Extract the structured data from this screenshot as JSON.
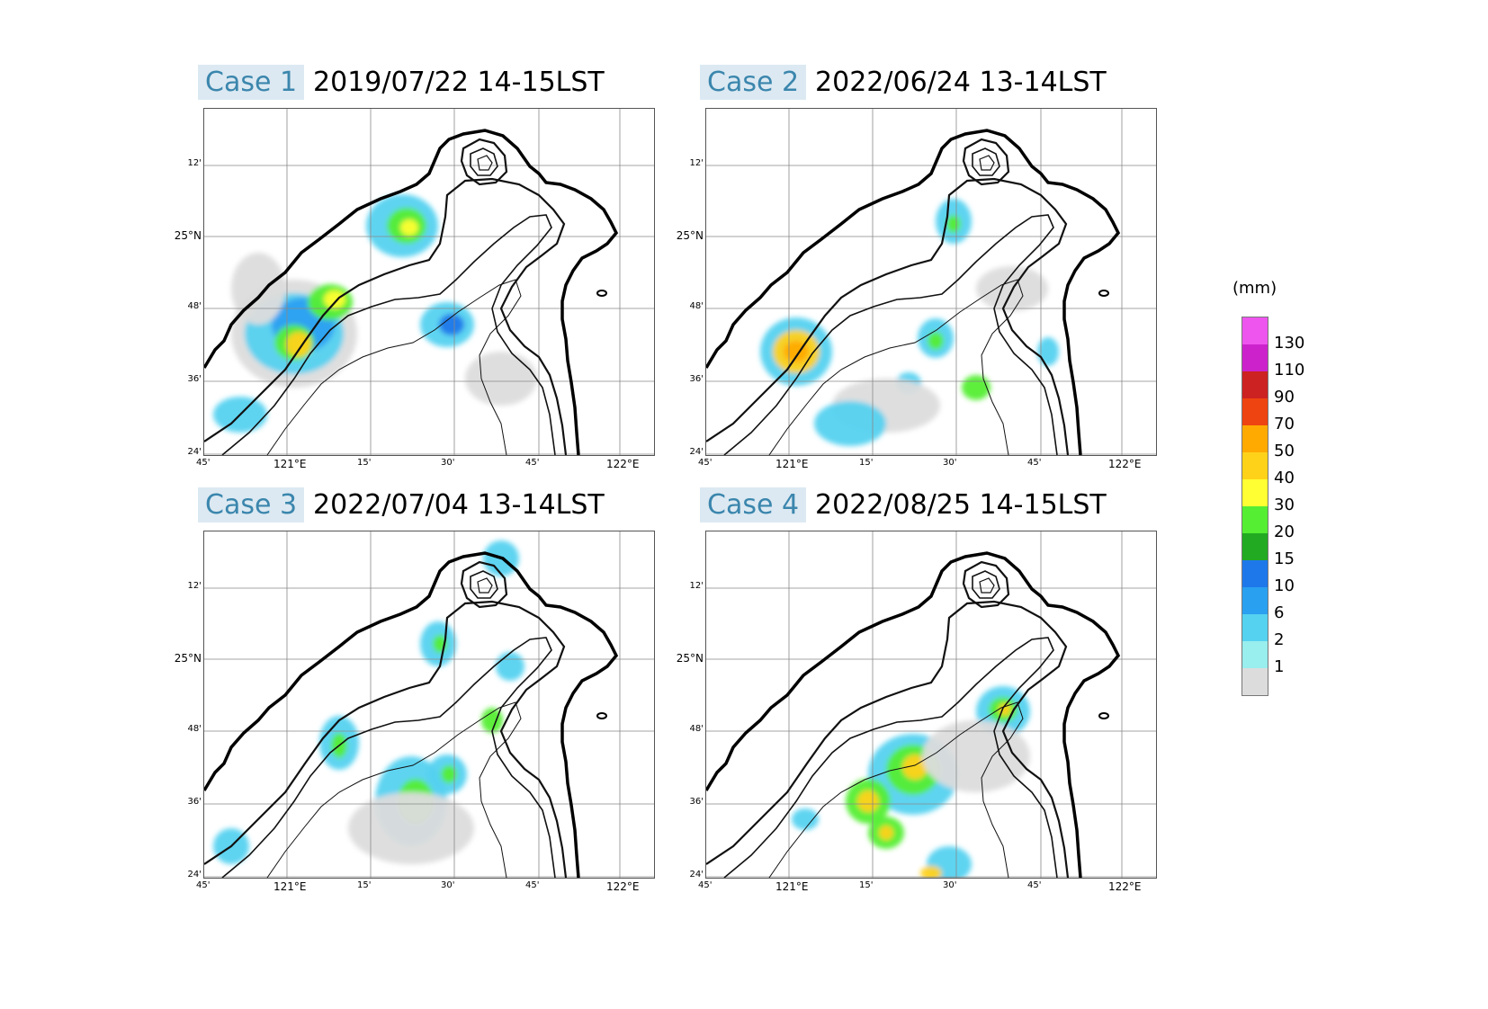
{
  "panels": [
    {
      "case_label": "Case 1",
      "date_label": "2019/07/22 14-15LST"
    },
    {
      "case_label": "Case 2",
      "date_label": "2022/06/24 13-14LST"
    },
    {
      "case_label": "Case 3",
      "date_label": "2022/07/04 13-14LST"
    },
    {
      "case_label": "Case 4",
      "date_label": "2022/08/25 14-15LST"
    }
  ],
  "axes": {
    "lat_ticks": [
      "12'",
      "25°N",
      "48'",
      "36'",
      "24'"
    ],
    "lon_ticks": [
      "45'",
      "121°E",
      "15'",
      "30'",
      "45'",
      "122°E"
    ]
  },
  "legend": {
    "unit": "(mm)",
    "levels": [
      "130",
      "110",
      "90",
      "70",
      "50",
      "40",
      "30",
      "20",
      "15",
      "10",
      "6",
      "2",
      "1"
    ],
    "colors": [
      "#ee55ee",
      "#cc22cc",
      "#cc2222",
      "#ee4411",
      "#ffaa00",
      "#ffd21a",
      "#ffff33",
      "#55ee33",
      "#22aa22",
      "#1e78ea",
      "#2aa0f0",
      "#55d2f0",
      "#99eeee",
      "#dcdcdc"
    ]
  }
}
